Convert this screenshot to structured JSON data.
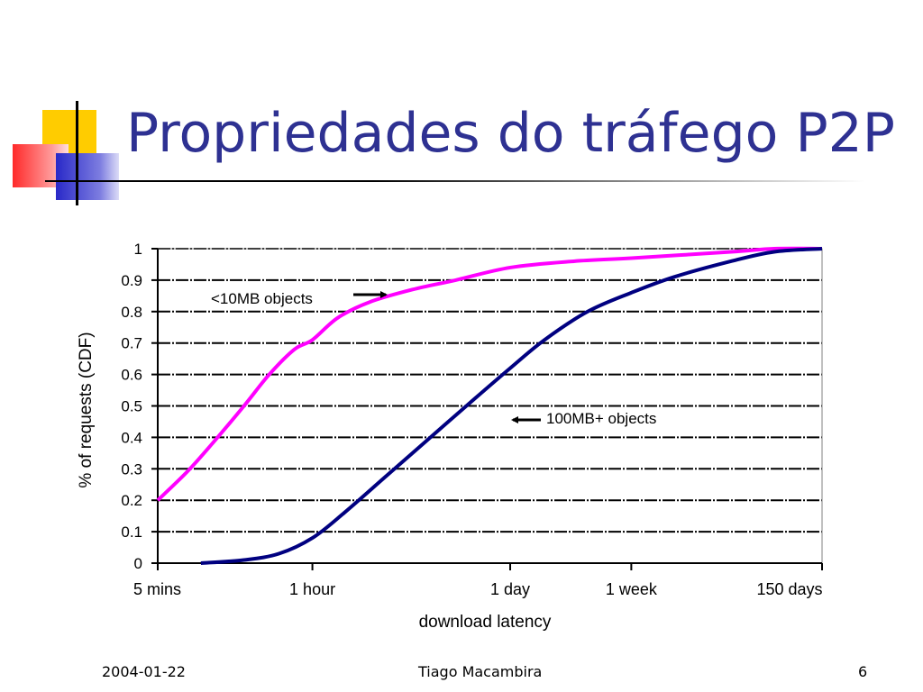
{
  "slide": {
    "title": "Propriedades do tráfego P2P",
    "footer_date": "2004-01-22",
    "footer_author": "Tiago Macambira",
    "page_number": "6"
  },
  "colors": {
    "title": "#2e3192",
    "series_small": "#ff00ff",
    "series_large": "#000080",
    "logo_yellow": "#ffcc00",
    "logo_red": "#ff3333",
    "logo_blue": "#3333cc"
  },
  "chart_data": {
    "type": "line",
    "xlabel": "download latency",
    "ylabel": "% of requests (CDF)",
    "x_scale": "log",
    "x_ticks": [
      {
        "label": "5 mins",
        "minutes": 5
      },
      {
        "label": "1 hour",
        "minutes": 60
      },
      {
        "label": "1 day",
        "minutes": 1440
      },
      {
        "label": "1 week",
        "minutes": 10080
      },
      {
        "label": "150 days",
        "minutes": 216000
      }
    ],
    "y_ticks": [
      "0",
      "0.1",
      "0.2",
      "0.3",
      "0.4",
      "0.5",
      "0.6",
      "0.7",
      "0.8",
      "0.9",
      "1"
    ],
    "ylim": [
      0,
      1
    ],
    "grid": true,
    "series": [
      {
        "name": "<10MB objects",
        "color": "#ff00ff",
        "points": [
          [
            5,
            0.2
          ],
          [
            8,
            0.29
          ],
          [
            12,
            0.38
          ],
          [
            20,
            0.5
          ],
          [
            30,
            0.6
          ],
          [
            45,
            0.68
          ],
          [
            60,
            0.71
          ],
          [
            90,
            0.78
          ],
          [
            150,
            0.83
          ],
          [
            300,
            0.87
          ],
          [
            600,
            0.9
          ],
          [
            1440,
            0.94
          ],
          [
            4000,
            0.96
          ],
          [
            10080,
            0.97
          ],
          [
            50000,
            0.99
          ],
          [
            100000,
            1.0
          ],
          [
            216000,
            1.0
          ]
        ]
      },
      {
        "name": "100MB+ objects",
        "color": "#000080",
        "points": [
          [
            10,
            0.0
          ],
          [
            20,
            0.01
          ],
          [
            35,
            0.03
          ],
          [
            60,
            0.08
          ],
          [
            100,
            0.16
          ],
          [
            200,
            0.28
          ],
          [
            400,
            0.4
          ],
          [
            800,
            0.52
          ],
          [
            1440,
            0.62
          ],
          [
            2500,
            0.71
          ],
          [
            5000,
            0.8
          ],
          [
            10080,
            0.86
          ],
          [
            20000,
            0.91
          ],
          [
            50000,
            0.96
          ],
          [
            100000,
            0.99
          ],
          [
            216000,
            1.0
          ]
        ]
      }
    ],
    "annotations": [
      {
        "text": "<10MB objects",
        "arrow": "right"
      },
      {
        "text": "100MB+ objects",
        "arrow": "left"
      }
    ]
  }
}
